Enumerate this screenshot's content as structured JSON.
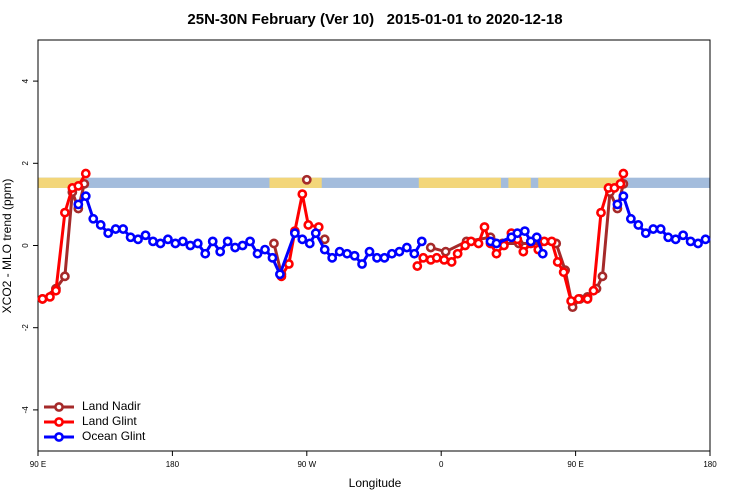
{
  "chart_data": {
    "type": "line",
    "title": "25N-30N February (Ver 10)   2015-01-01 to 2020-12-18",
    "xlabel": "Longitude",
    "ylabel": "XCO2 - MLO trend (ppm)",
    "xlim": [
      90,
      540
    ],
    "ylim": [
      -5,
      5
    ],
    "xticks": [
      {
        "value": 90,
        "label": "90 E"
      },
      {
        "value": 180,
        "label": "180"
      },
      {
        "value": 270,
        "label": "90 W"
      },
      {
        "value": 360,
        "label": "0"
      },
      {
        "value": 450,
        "label": "90 E"
      },
      {
        "value": 540,
        "label": "180"
      }
    ],
    "yticks": [
      -4,
      -2,
      0,
      2,
      4
    ],
    "legend": "bottom-left",
    "surface_band": {
      "ylim": [
        1.4,
        1.65
      ],
      "ocean_color": "#a3bcdc",
      "land_color": "#f3d67a",
      "land": [
        [
          90,
          122
        ],
        [
          245,
          280
        ],
        [
          345,
          400
        ],
        [
          405,
          420
        ],
        [
          425,
          482
        ]
      ]
    },
    "series": [
      {
        "name": "Land Nadir",
        "color": "#a52a2a",
        "x": [
          93,
          102,
          108,
          113,
          117,
          121,
          null,
          248,
          253,
          null,
          270,
          null,
          282,
          null,
          353,
          363,
          377,
          393,
          401,
          412,
          437,
          443,
          448,
          453,
          458,
          464,
          468,
          473,
          478,
          482
        ],
        "values": [
          -1.3,
          -1.05,
          -0.75,
          1.3,
          0.9,
          1.5,
          null,
          0.05,
          -0.7,
          null,
          1.6,
          null,
          0.15,
          null,
          -0.05,
          -0.15,
          0.1,
          0.2,
          0.05,
          0.05,
          0.05,
          -0.6,
          -1.5,
          -1.3,
          -1.25,
          -1.05,
          -0.75,
          1.3,
          0.9,
          1.5
        ]
      },
      {
        "name": "Land Glint",
        "color": "#ff0000",
        "x": [
          93,
          98,
          102,
          108,
          113,
          117,
          122,
          null,
          253,
          258,
          262,
          267,
          271,
          278,
          null,
          344,
          348,
          353,
          357,
          362,
          367,
          371,
          376,
          380,
          385,
          389,
          393,
          397,
          402,
          407,
          411,
          415,
          420,
          425,
          429,
          434,
          438,
          442,
          447,
          452,
          458,
          462,
          467,
          472,
          476,
          480,
          482
        ],
        "values": [
          -1.3,
          -1.25,
          -1.1,
          0.8,
          1.4,
          1.45,
          1.75,
          null,
          -0.75,
          -0.45,
          0.35,
          1.25,
          0.5,
          0.45,
          null,
          -0.5,
          -0.3,
          -0.35,
          -0.3,
          -0.35,
          -0.4,
          -0.2,
          0.0,
          0.1,
          0.05,
          0.45,
          0.05,
          -0.2,
          0.0,
          0.3,
          0.15,
          -0.15,
          0.05,
          -0.1,
          0.1,
          0.1,
          -0.4,
          -0.65,
          -1.35,
          -1.3,
          -1.3,
          -1.1,
          0.8,
          1.4,
          1.4,
          1.5,
          1.75
        ]
      },
      {
        "name": "Ocean Glint",
        "color": "#0000ff",
        "x": [
          117,
          122,
          127,
          132,
          137,
          142,
          147,
          152,
          157,
          162,
          167,
          172,
          177,
          182,
          187,
          192,
          197,
          202,
          207,
          212,
          217,
          222,
          227,
          232,
          237,
          242,
          247,
          252,
          262,
          267,
          272,
          276,
          282,
          287,
          292,
          297,
          302,
          307,
          312,
          317,
          322,
          327,
          332,
          337,
          342,
          347,
          null,
          393,
          397,
          407,
          411,
          416,
          420,
          424,
          428,
          null,
          478,
          482,
          487,
          492,
          497,
          502,
          507,
          512,
          517,
          522,
          527,
          532,
          537
        ],
        "values": [
          1.0,
          1.2,
          0.65,
          0.5,
          0.3,
          0.4,
          0.4,
          0.2,
          0.15,
          0.25,
          0.1,
          0.05,
          0.15,
          0.05,
          0.1,
          0.0,
          0.05,
          -0.2,
          0.1,
          -0.15,
          0.1,
          -0.05,
          0.0,
          0.1,
          -0.2,
          -0.1,
          -0.3,
          -0.7,
          0.3,
          0.15,
          0.05,
          0.3,
          -0.1,
          -0.3,
          -0.15,
          -0.2,
          -0.25,
          -0.45,
          -0.15,
          -0.3,
          -0.3,
          -0.2,
          -0.15,
          -0.05,
          -0.2,
          0.1,
          null,
          0.1,
          0.05,
          0.2,
          0.3,
          0.35,
          0.1,
          0.2,
          -0.2,
          null,
          1.0,
          1.2,
          0.65,
          0.5,
          0.3,
          0.4,
          0.4,
          0.2,
          0.15,
          0.25,
          0.1,
          0.05,
          0.15
        ]
      }
    ]
  }
}
